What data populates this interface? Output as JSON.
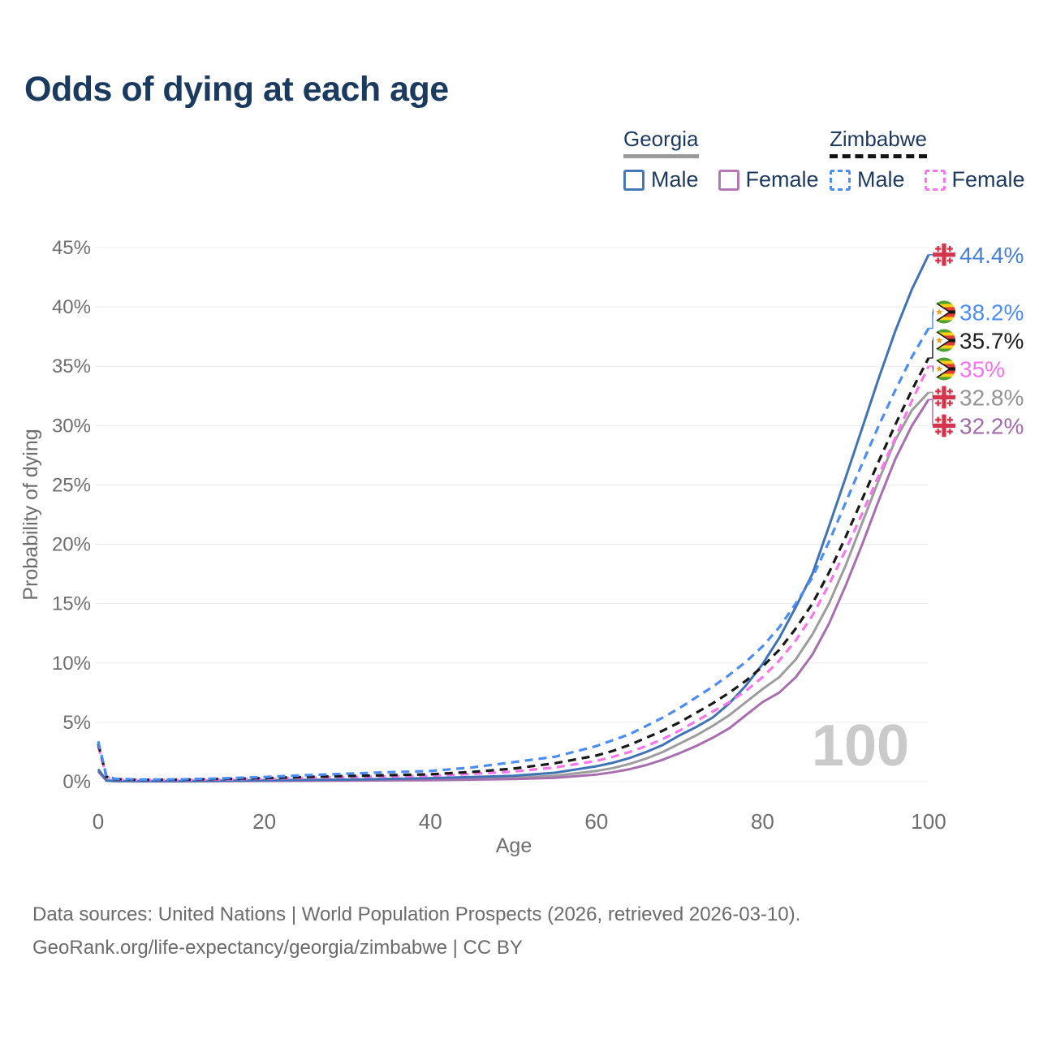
{
  "page": {
    "title": "Odds of dying at each age"
  },
  "legend": {
    "groups": [
      {
        "country": "Georgia",
        "line_style": "solid",
        "swatch_color": "#9a9a9a",
        "items": [
          {
            "label": "Male",
            "color": "#4478b6",
            "dashed": false
          },
          {
            "label": "Female",
            "color": "#b578b2",
            "dashed": false
          }
        ]
      },
      {
        "country": "Zimbabwe",
        "line_style": "dashed",
        "swatch_color": "#141414",
        "items": [
          {
            "label": "Male",
            "color": "#4b8cf5",
            "dashed": true
          },
          {
            "label": "Female",
            "color": "#fa74ec",
            "dashed": true
          }
        ]
      }
    ]
  },
  "axes": {
    "y_title": "Probability of dying",
    "x_title": "Age",
    "y_ticks": [
      "0%",
      "5%",
      "10%",
      "15%",
      "20%",
      "25%",
      "30%",
      "35%",
      "40%",
      "45%"
    ],
    "x_ticks": [
      "0",
      "20",
      "40",
      "60",
      "80",
      "100"
    ]
  },
  "watermark": "100",
  "chart_data": {
    "type": "line",
    "title": "Odds of dying at each age",
    "xlabel": "Age",
    "ylabel": "Probability of dying",
    "unit": "%",
    "xlim": [
      0,
      100
    ],
    "ylim": [
      0,
      45
    ],
    "grid": "horizontal",
    "legend_position": "top-right",
    "hovered_age": "100",
    "x": [
      0,
      1,
      2,
      5,
      10,
      15,
      20,
      25,
      30,
      35,
      40,
      45,
      50,
      55,
      60,
      62,
      64,
      66,
      68,
      70,
      72,
      74,
      76,
      78,
      80,
      82,
      84,
      86,
      88,
      90,
      92,
      94,
      96,
      98,
      100
    ],
    "series": [
      {
        "id": "georgia-male",
        "country": "Georgia",
        "sex": "Male",
        "flag": "georgia",
        "color": "#4073b4",
        "label_color": "#4a80d4",
        "dashed": false,
        "end_label": "44.4%",
        "end_value": 44.4,
        "values": [
          1.05,
          0.1,
          0.06,
          0.05,
          0.05,
          0.08,
          0.12,
          0.15,
          0.18,
          0.23,
          0.3,
          0.4,
          0.5,
          0.75,
          1.3,
          1.6,
          2.0,
          2.5,
          3.1,
          3.9,
          4.6,
          5.4,
          6.6,
          8.1,
          9.9,
          12.1,
          14.7,
          17.5,
          21.5,
          25.6,
          29.8,
          34.0,
          38.0,
          41.5,
          44.4
        ]
      },
      {
        "id": "zimbabwe-male",
        "country": "Zimbabwe",
        "sex": "Male",
        "flag": "zimbabwe",
        "color": "#4b8cf5",
        "label_color": "#4b8cf5",
        "dashed": true,
        "end_label": "38.2%",
        "end_value": 38.2,
        "values": [
          3.4,
          0.45,
          0.25,
          0.18,
          0.2,
          0.28,
          0.4,
          0.55,
          0.68,
          0.8,
          0.9,
          1.2,
          1.65,
          2.1,
          3.0,
          3.5,
          4.0,
          4.7,
          5.4,
          6.2,
          7.1,
          8.0,
          9.0,
          10.1,
          11.4,
          13.0,
          15.0,
          17.2,
          20.2,
          23.5,
          26.8,
          30.0,
          33.0,
          35.8,
          38.2
        ]
      },
      {
        "id": "zimbabwe-both-sexes",
        "country": "Zimbabwe",
        "sex": "Both sexes",
        "flag": "zimbabwe",
        "color": "#191919",
        "label_color": "#1d1d1d",
        "dashed": true,
        "end_label": "35.7%",
        "end_value": 35.7,
        "values": [
          3.2,
          0.42,
          0.22,
          0.16,
          0.17,
          0.23,
          0.3,
          0.4,
          0.48,
          0.55,
          0.62,
          0.82,
          1.1,
          1.55,
          2.2,
          2.6,
          3.1,
          3.7,
          4.3,
          5.0,
          5.8,
          6.6,
          7.5,
          8.5,
          9.7,
          11.1,
          12.9,
          15.0,
          17.6,
          20.6,
          23.8,
          27.0,
          30.1,
          33.0,
          35.7
        ]
      },
      {
        "id": "zimbabwe-female",
        "country": "Zimbabwe",
        "sex": "Female",
        "flag": "zimbabwe",
        "color": "#fa74ec",
        "label_color": "#fa70ee",
        "dashed": true,
        "end_label": "35%",
        "end_value": 35.0,
        "values": [
          3.0,
          0.4,
          0.2,
          0.15,
          0.15,
          0.19,
          0.25,
          0.32,
          0.4,
          0.45,
          0.5,
          0.65,
          0.85,
          1.2,
          1.75,
          2.1,
          2.5,
          3.0,
          3.6,
          4.3,
          5.1,
          5.9,
          6.7,
          7.65,
          8.8,
          10.2,
          11.9,
          14.0,
          16.6,
          19.5,
          22.6,
          25.8,
          29.0,
          32.1,
          35.0
        ]
      },
      {
        "id": "georgia-both-sexes",
        "country": "Georgia",
        "sex": "Both sexes",
        "flag": "georgia",
        "color": "#9d9d9d",
        "label_color": "#949494",
        "dashed": false,
        "end_label": "32.8%",
        "end_value": 32.8,
        "values": [
          0.95,
          0.09,
          0.05,
          0.04,
          0.04,
          0.06,
          0.09,
          0.11,
          0.13,
          0.16,
          0.2,
          0.26,
          0.34,
          0.5,
          0.9,
          1.15,
          1.5,
          1.95,
          2.5,
          3.2,
          3.9,
          4.7,
          5.6,
          6.7,
          7.8,
          8.8,
          10.3,
          12.4,
          15.0,
          18.2,
          21.8,
          25.4,
          28.8,
          31.3,
          32.8
        ]
      },
      {
        "id": "georgia-female",
        "country": "Georgia",
        "sex": "Female",
        "flag": "georgia",
        "color": "#a76fae",
        "label_color": "#a06cab",
        "dashed": false,
        "end_label": "32.2%",
        "end_value": 32.2,
        "values": [
          0.85,
          0.08,
          0.04,
          0.03,
          0.03,
          0.05,
          0.06,
          0.07,
          0.09,
          0.11,
          0.13,
          0.17,
          0.22,
          0.33,
          0.6,
          0.8,
          1.05,
          1.4,
          1.85,
          2.4,
          3.0,
          3.7,
          4.5,
          5.6,
          6.7,
          7.5,
          8.8,
          10.7,
          13.3,
          16.5,
          20.0,
          23.7,
          27.2,
          30.0,
          32.2
        ]
      }
    ]
  },
  "footer": {
    "line1": "Data sources: United Nations | World Population Prospects (2026, retrieved 2026-03-10).",
    "line2": "GeoRank.org/life-expectancy/georgia/zimbabwe | CC BY"
  }
}
